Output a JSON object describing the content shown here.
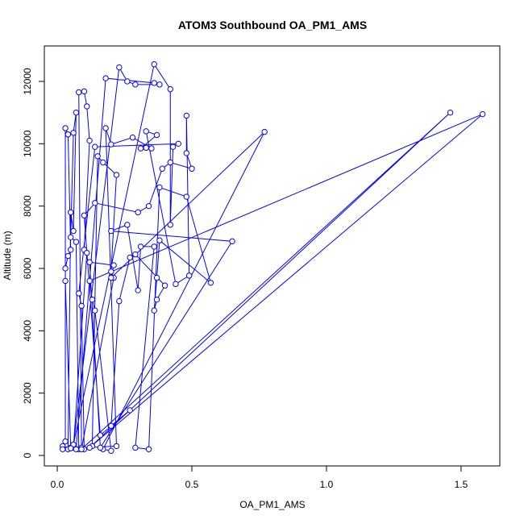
{
  "chart_data": {
    "type": "line",
    "title": "ATOM3 Southbound OA_PM1_AMS",
    "x_label": "OA_PM1_AMS",
    "y_label": "Altitude (m)",
    "xlim": [
      -0.048,
      1.644
    ],
    "ylim": [
      -336,
      13137
    ],
    "xticks": [
      {
        "value": 0,
        "label": "0.0"
      },
      0.5,
      {
        "value": 1,
        "label": "1.0"
      },
      1.5
    ],
    "yticks": [
      0,
      2000,
      4000,
      6000,
      8000,
      10000,
      12000
    ],
    "series": [
      {
        "color": "#0000ff",
        "x": [
          0.03,
          0.03,
          0.04,
          0.05,
          0.04,
          0.03,
          0.03,
          0.05,
          0.04,
          0.05,
          0.06,
          0.07,
          0.06,
          0.05,
          0.07,
          0.08,
          0.09,
          0.08,
          0.1,
          0.11,
          0.12,
          0.1,
          0.11,
          0.06,
          0.07,
          0.18,
          0.36,
          0.38,
          0.29,
          0.26,
          0.23,
          0.06,
          0.36,
          0.42,
          0.42,
          0.43,
          0.45,
          0.14,
          0.08,
          0.09,
          0.1,
          0.13,
          0.15,
          0.17,
          0.22,
          0.2,
          0.21,
          0.09,
          1.46,
          0.12,
          1.58,
          0.12,
          0.13,
          0.14,
          0.2,
          0.17,
          0.77,
          0.2,
          0.21,
          0.12,
          0.16,
          0.65,
          0.2,
          0.26,
          0.3,
          0.31,
          0.36,
          0.29,
          0.34,
          0.38,
          0.48,
          0.57,
          0.38,
          0.37,
          0.36,
          0.37,
          0.4,
          0.29,
          0.27,
          0.23,
          0.2,
          0.27,
          0.16,
          0.1,
          0.14,
          0.3,
          0.34,
          0.39,
          0.42,
          0.5,
          0.48,
          0.48,
          0.49,
          0.44,
          0.33,
          0.37,
          0.31,
          0.33,
          0.35,
          0.28,
          0.2,
          0.18,
          0.22,
          0.05,
          0.02,
          0.02
        ],
        "y": [
          450,
          10500,
          10300,
          6600,
          6400,
          6000,
          5600,
          250,
          200,
          7800,
          7200,
          11000,
          10350,
          7000,
          6850,
          200,
          250,
          11650,
          11680,
          11200,
          10100,
          6600,
          6500,
          250,
          200,
          12100,
          11950,
          11900,
          11900,
          12000,
          12450,
          350,
          12550,
          11750,
          7400,
          9900,
          10000,
          9900,
          5200,
          4800,
          200,
          300,
          9600,
          9400,
          9000,
          5900,
          5700,
          200,
          11000,
          250,
          10950,
          5600,
          5000,
          4650,
          150,
          200,
          10380,
          5700,
          6100,
          6200,
          250,
          6870,
          7200,
          7400,
          5300,
          6700,
          6700,
          250,
          200,
          8600,
          8300,
          5540,
          6900,
          5700,
          4650,
          5000,
          5450,
          6450,
          6350,
          4950,
          950,
          1450,
          650,
          7700,
          8100,
          7800,
          8000,
          9200,
          9400,
          9200,
          9700,
          10900,
          5770,
          5500,
          10400,
          10280,
          9850,
          9870,
          9850,
          10200,
          9980,
          10500,
          300,
          230,
          300,
          200
        ]
      }
    ]
  }
}
